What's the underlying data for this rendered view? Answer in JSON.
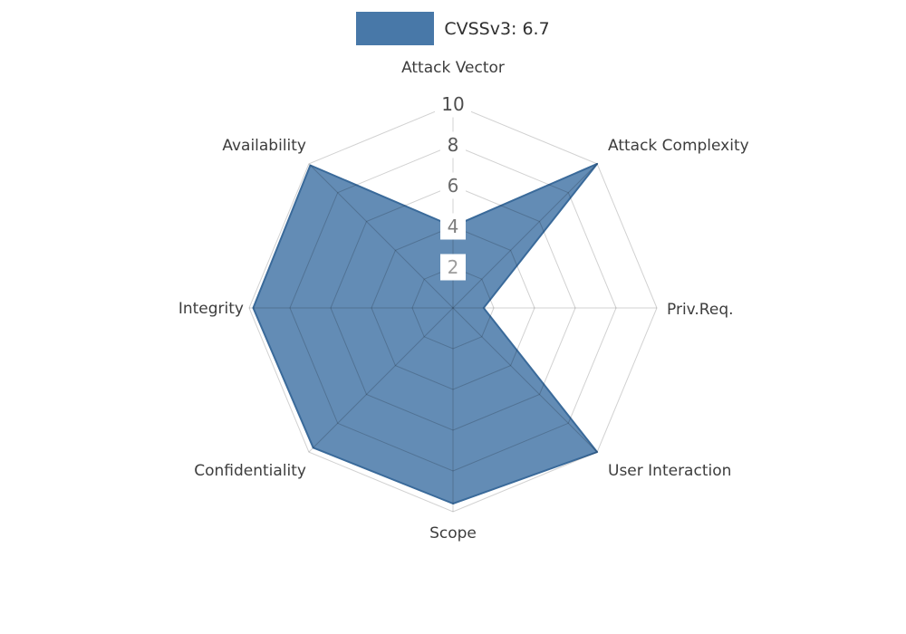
{
  "legend": {
    "label": "CVSSv3: 6.7",
    "swatch_color": "#4878a8"
  },
  "chart_data": {
    "type": "radar",
    "title": "CVSSv3: 6.7",
    "categories": [
      "Attack Vector",
      "Attack Complexity",
      "Priv.Req.",
      "User Interaction",
      "Scope",
      "Confidentiality",
      "Integrity",
      "Availability"
    ],
    "series": [
      {
        "name": "CVSSv3: 6.7",
        "values": [
          4,
          10,
          1.5,
          10,
          9.6,
          9.7,
          9.8,
          9.9
        ],
        "fill_color": "#4878a8",
        "edge_color": "#3a6a9a"
      }
    ],
    "radial_ticks": [
      2,
      4,
      6,
      8,
      10
    ],
    "rlim": [
      0,
      10
    ],
    "grid": true,
    "grid_style": "polygon-web",
    "legend_position": "top-center",
    "tick_label_colors": {
      "2": "#9c9c9c",
      "4": "#7c7c7c",
      "6": "#6b6b6b",
      "8": "#575757",
      "10": "#4d4d4d"
    },
    "axis_label_color": "#3d3d3d"
  }
}
